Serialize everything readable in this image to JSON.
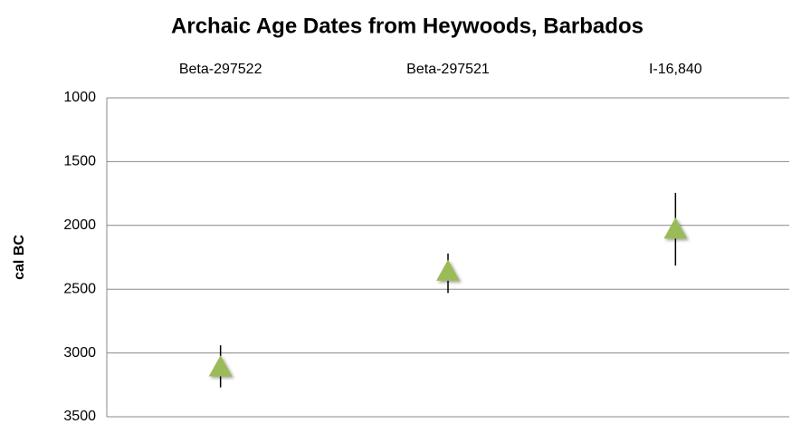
{
  "chart_data": {
    "type": "scatter",
    "title": "Archaic Age Dates from Heywoods, Barbados",
    "y_label": "cal BC",
    "categories": [
      "Beta-297522",
      "Beta-297521",
      "I-16,840"
    ],
    "values": [
      3110,
      2360,
      2030
    ],
    "low": [
      2940,
      2220,
      1745
    ],
    "high": [
      3270,
      2530,
      2315
    ],
    "color": "#9bbb59",
    "ylim": [
      1000,
      3500
    ],
    "y_inverted": true,
    "yticks": [
      1000,
      1500,
      2000,
      2500,
      3000,
      3500
    ],
    "grid": true
  }
}
